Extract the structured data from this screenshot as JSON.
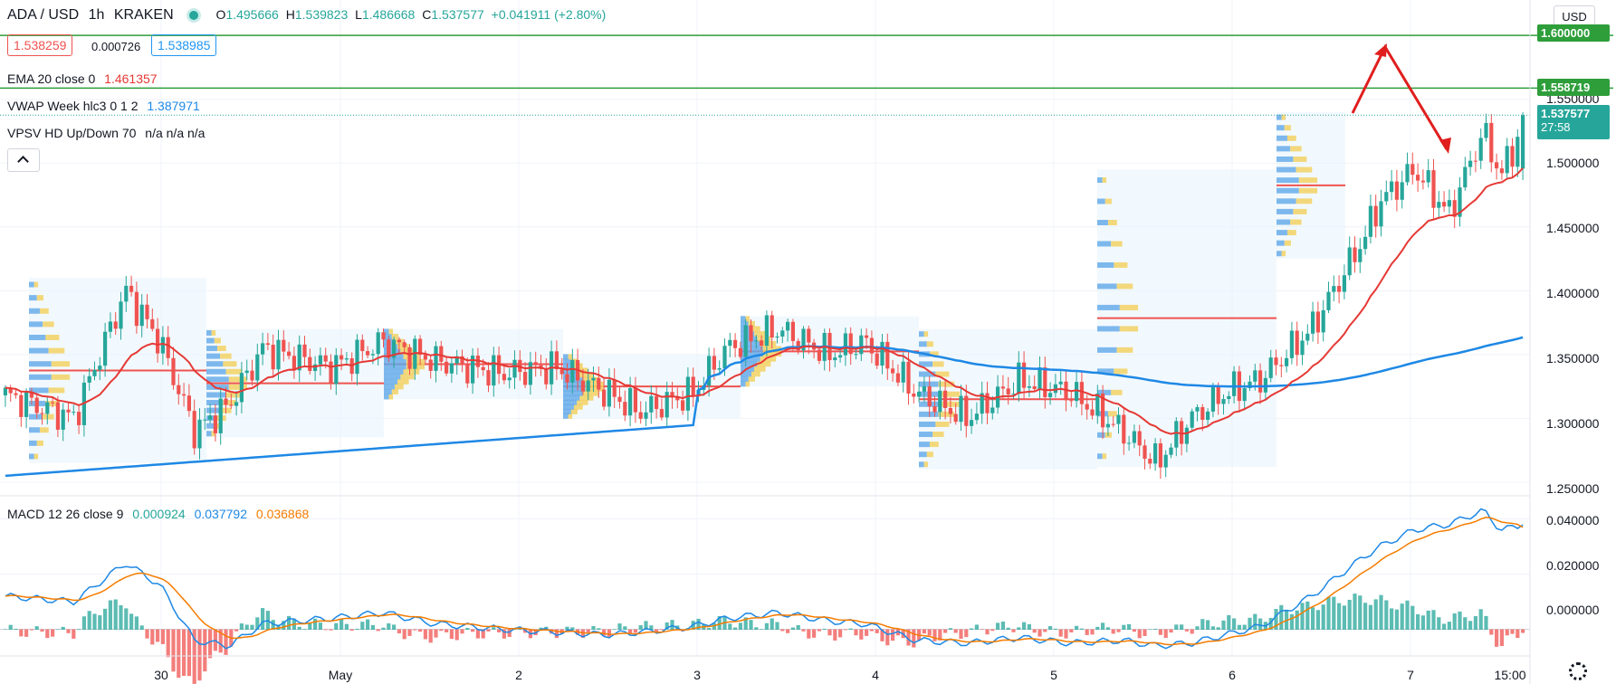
{
  "header": {
    "symbol": "ADA / USD",
    "interval": "1h",
    "exchange": "KRAKEN",
    "ohlc": {
      "o_label": "O",
      "o": "1.495666",
      "h_label": "H",
      "h": "1.539823",
      "l_label": "L",
      "l": "1.486668",
      "c_label": "C",
      "c": "1.537577",
      "change": "+0.041911 (+2.80%)"
    },
    "sell_price": "1.538259",
    "spread": "0.000726",
    "buy_price": "1.538985",
    "currency": "USD"
  },
  "indicators": {
    "ema": {
      "label": "EMA 20 close 0",
      "value": "1.461357"
    },
    "vwap": {
      "label": "VWAP Week hlc3 0 1 2",
      "value": "1.387971"
    },
    "vpsv": {
      "label": "VPSV HD Up/Down 70",
      "value": "n/a  n/a  n/a"
    },
    "macd": {
      "label": "MACD 12 26 close 9",
      "hist": "0.000924",
      "macd": "0.037792",
      "signal": "0.036868"
    }
  },
  "price_axis": {
    "ticks": [
      "1.600000",
      "1.550000",
      "1.500000",
      "1.450000",
      "1.400000",
      "1.350000",
      "1.300000",
      "1.250000"
    ],
    "markers": [
      {
        "value": "1.600000",
        "color": "#2e9e3a"
      },
      {
        "value": "1.558719",
        "color": "#2e9e3a"
      },
      {
        "value": "1.537577",
        "color": "#26a69a",
        "extra": "27:58"
      }
    ]
  },
  "macd_axis": {
    "ticks": [
      "0.040000",
      "0.020000",
      "0.000000"
    ]
  },
  "time_axis": {
    "labels": [
      "30",
      "May",
      "2",
      "3",
      "4",
      "5",
      "6",
      "7",
      "15:00"
    ]
  },
  "colors": {
    "up": "#26a69a",
    "down": "#ef5350",
    "ema": "#e53935",
    "vwap": "#1e88e5",
    "signal": "#f57c00",
    "level": "#2e9e3a",
    "arrow": "#e01e1e"
  },
  "chart_data": {
    "type": "candlestick",
    "symbol": "ADA / USD",
    "interval": "1h",
    "price_range": [
      1.245,
      1.615
    ],
    "macd_range": [
      -0.008,
      0.046
    ],
    "horizontal_levels": [
      1.6,
      1.558719
    ],
    "vwap_reset_at": 0.405,
    "anchors": [
      [
        0.0,
        1.318
      ],
      [
        0.04,
        1.3
      ],
      [
        0.07,
        1.4
      ],
      [
        0.09,
        1.36
      ],
      [
        0.11,
        1.29
      ],
      [
        0.13,
        1.31
      ],
      [
        0.15,
        1.355
      ],
      [
        0.19,
        1.34
      ],
      [
        0.22,
        1.36
      ],
      [
        0.25,
        1.345
      ],
      [
        0.29,
        1.335
      ],
      [
        0.32,
        1.34
      ],
      [
        0.35,
        1.32
      ],
      [
        0.37,
        1.305
      ],
      [
        0.4,
        1.32
      ],
      [
        0.42,
        1.355
      ],
      [
        0.45,
        1.37
      ],
      [
        0.48,
        1.35
      ],
      [
        0.5,
        1.36
      ],
      [
        0.53,
        1.32
      ],
      [
        0.56,
        1.3
      ],
      [
        0.59,
        1.33
      ],
      [
        0.62,
        1.32
      ],
      [
        0.65,
        1.29
      ],
      [
        0.67,
        1.265
      ],
      [
        0.69,
        1.3
      ],
      [
        0.71,
        1.32
      ],
      [
        0.73,
        1.33
      ],
      [
        0.76,
        1.37
      ],
      [
        0.79,
        1.44
      ],
      [
        0.8,
        1.47
      ],
      [
        0.82,
        1.495
      ],
      [
        0.84,
        1.46
      ],
      [
        0.86,
        1.525
      ],
      [
        0.87,
        1.49
      ],
      [
        0.886,
        1.5376
      ]
    ],
    "macd_anchors": [
      [
        0.0,
        0.012
      ],
      [
        0.04,
        0.01
      ],
      [
        0.07,
        0.024
      ],
      [
        0.09,
        0.016
      ],
      [
        0.11,
        -0.004
      ],
      [
        0.13,
        -0.006
      ],
      [
        0.15,
        0.002
      ],
      [
        0.19,
        0.004
      ],
      [
        0.22,
        0.006
      ],
      [
        0.25,
        0.002
      ],
      [
        0.29,
        0.0
      ],
      [
        0.32,
        -0.001
      ],
      [
        0.35,
        -0.002
      ],
      [
        0.37,
        -0.001
      ],
      [
        0.4,
        0.001
      ],
      [
        0.42,
        0.004
      ],
      [
        0.45,
        0.006
      ],
      [
        0.48,
        0.003
      ],
      [
        0.5,
        0.002
      ],
      [
        0.53,
        -0.004
      ],
      [
        0.56,
        -0.005
      ],
      [
        0.59,
        -0.003
      ],
      [
        0.62,
        -0.005
      ],
      [
        0.65,
        -0.004
      ],
      [
        0.67,
        -0.006
      ],
      [
        0.69,
        -0.005
      ],
      [
        0.71,
        -0.002
      ],
      [
        0.73,
        0.001
      ],
      [
        0.76,
        0.012
      ],
      [
        0.79,
        0.026
      ],
      [
        0.8,
        0.03
      ],
      [
        0.82,
        0.036
      ],
      [
        0.84,
        0.038
      ],
      [
        0.86,
        0.043
      ],
      [
        0.87,
        0.036
      ],
      [
        0.886,
        0.0378
      ]
    ],
    "signal_value": 0.036868,
    "hist_value": 0.000924,
    "last": {
      "open": 1.495666,
      "high": 1.539823,
      "low": 1.486668,
      "close": 1.537577
    }
  }
}
